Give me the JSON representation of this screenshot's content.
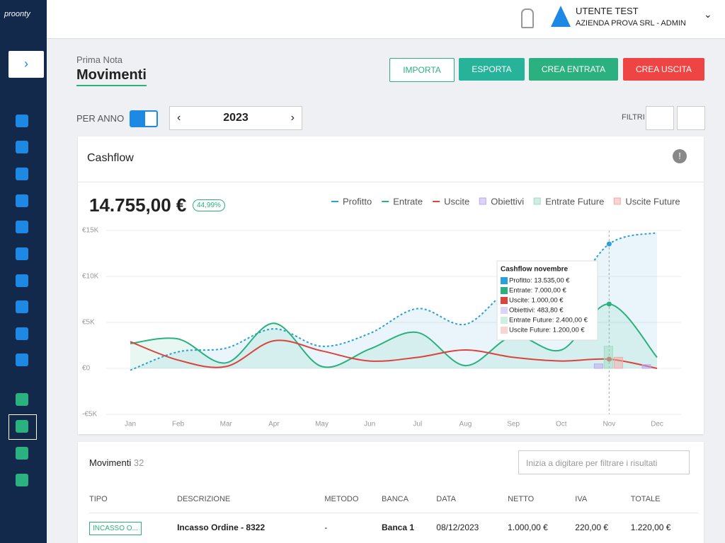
{
  "brand": "proonty",
  "user": {
    "name": "UTENTE TEST",
    "company": "AZIENDA PROVA SRL - ADMIN"
  },
  "breadcrumb": "Prima Nota",
  "page_title": "Movimenti",
  "buttons": {
    "import": "IMPORTA",
    "export": "ESPORTA",
    "income": "CREA ENTRATA",
    "expense": "CREA USCITA"
  },
  "period": {
    "label": "PER ANNO",
    "year": "2023"
  },
  "filters_label": "FILTRI",
  "card": {
    "title": "Cashflow",
    "total": "14.755,00 €",
    "badge": "44,99%"
  },
  "chart_data": {
    "type": "line",
    "categories": [
      "Jan",
      "Feb",
      "Mar",
      "Apr",
      "May",
      "Jun",
      "Jul",
      "Aug",
      "Sep",
      "Oct",
      "Nov",
      "Dec"
    ],
    "ylim": [
      -5000,
      15000
    ],
    "yticks": [
      {
        "value": -5000,
        "label": "-€5K"
      },
      {
        "value": 0,
        "label": "€0"
      },
      {
        "value": 5000,
        "label": "€5K"
      },
      {
        "value": 10000,
        "label": "€10K"
      },
      {
        "value": 15000,
        "label": "€15K"
      }
    ],
    "grid": true,
    "series": [
      {
        "name": "Profitto",
        "color": "#2a9fd8",
        "kind": "line",
        "dashed": true,
        "area": true,
        "values": [
          -200,
          1800,
          2200,
          4300,
          2400,
          3800,
          6500,
          4800,
          8700,
          7400,
          13535,
          14755
        ]
      },
      {
        "name": "Entrate",
        "color": "#2bb07f",
        "kind": "line",
        "area": true,
        "values": [
          2700,
          3200,
          600,
          4900,
          200,
          2100,
          3900,
          300,
          3500,
          2000,
          7000,
          1200
        ]
      },
      {
        "name": "Uscite",
        "color": "#d9443c",
        "kind": "line",
        "values": [
          2900,
          900,
          200,
          3000,
          1900,
          800,
          1200,
          2000,
          1200,
          800,
          1000,
          0
        ]
      },
      {
        "name": "Obiettivi",
        "color": "#b9a9f0",
        "kind": "bar",
        "values": [
          null,
          null,
          null,
          null,
          null,
          null,
          null,
          null,
          null,
          null,
          483.8,
          400
        ]
      },
      {
        "name": "Entrate Future",
        "color": "#9fdcc2",
        "kind": "bar",
        "values": [
          null,
          null,
          null,
          null,
          null,
          null,
          null,
          null,
          null,
          null,
          2400,
          null
        ]
      },
      {
        "name": "Uscite Future",
        "color": "#f2a9a6",
        "kind": "bar",
        "values": [
          null,
          null,
          null,
          null,
          null,
          null,
          null,
          null,
          null,
          null,
          1200,
          null
        ]
      }
    ],
    "tooltip": {
      "title": "Cashflow novembre",
      "items": [
        "Profitto: 13.535,00 €",
        "Entrate: 7.000,00 €",
        "Uscite: 1.000,00 €",
        "Obiettivi: 483,80 €",
        "Entrate Future: 2.400,00 €",
        "Uscite Future: 1.200,00 €"
      ]
    }
  },
  "list": {
    "title": "Movimenti",
    "count": "32",
    "search": "Inizia a digitare per filtrare i risultati"
  },
  "table": {
    "columns": [
      "TIPO",
      "DESCRIZIONE",
      "METODO",
      "BANCA",
      "DATA",
      "NETTO",
      "IVA",
      "TOTALE"
    ],
    "rows": [
      [
        "INCASSO O...",
        "Incasso Ordine - 8322",
        "-",
        "Banca 1",
        "08/12/2023",
        "1.000,00 €",
        "220,00 €",
        "1.220,00 €"
      ]
    ]
  }
}
